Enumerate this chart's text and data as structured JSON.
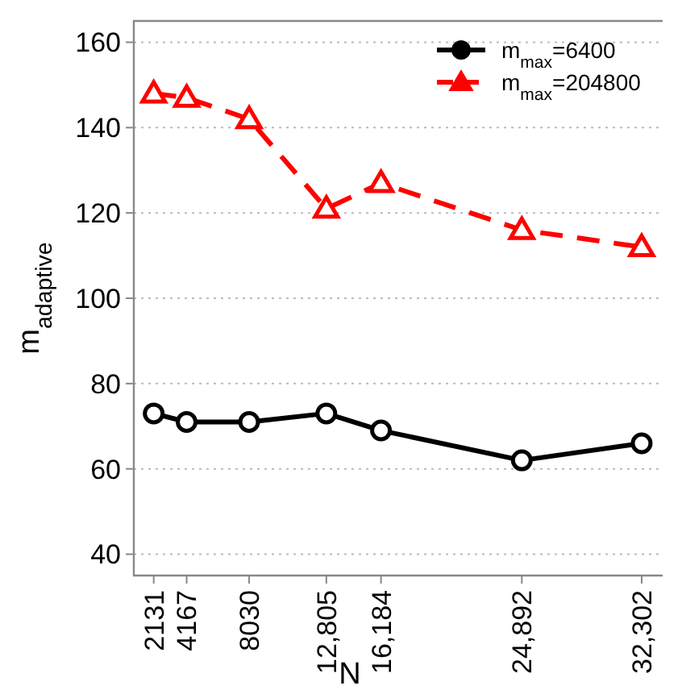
{
  "chart_data": {
    "type": "line",
    "xlabel": "N",
    "ylabel": "m$_{adaptive}$",
    "x": [
      2131,
      4167,
      8030,
      12805,
      16184,
      24892,
      32302
    ],
    "xlim": [
      900,
      33600
    ],
    "xticks": [
      {
        "value": 2131,
        "label": "2131"
      },
      {
        "value": 4167,
        "label": "4167"
      },
      {
        "value": 8030,
        "label": "8030"
      },
      {
        "value": 12805,
        "label": "12,805"
      },
      {
        "value": 16184,
        "label": "16,184"
      },
      {
        "value": 24892,
        "label": "24,892"
      },
      {
        "value": 32302,
        "label": "32,302"
      }
    ],
    "ylim": [
      35,
      165
    ],
    "yticks": [
      40,
      60,
      80,
      100,
      120,
      140,
      160
    ],
    "grid": "y",
    "legend": "top right",
    "series": [
      {
        "name": "m$_{max}$=6400",
        "color": "#000000",
        "marker": "circle",
        "line_style": "solid",
        "values": [
          73,
          71,
          71,
          73,
          69,
          62,
          66
        ]
      },
      {
        "name": "m$_{max}$=204800",
        "color": "#ff0000",
        "marker": "triangle",
        "line_style": "dashed",
        "values": [
          148,
          147,
          142,
          121,
          127,
          116,
          112
        ]
      }
    ]
  }
}
